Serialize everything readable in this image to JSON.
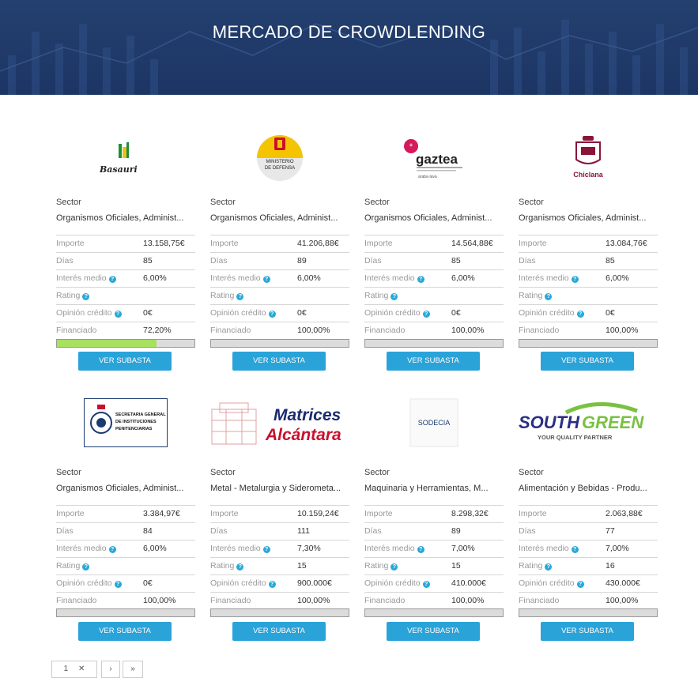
{
  "page": {
    "title": "MERCADO DE CROWDLENDING"
  },
  "logos": {
    "basauri": "Basauri",
    "defensa": "MINISTERIO DE DEFENSA",
    "gaztea_name": "gaztea",
    "gaztea_tag": "araba·lava",
    "chiclana": "Chiclana",
    "sgip": "SECRETARIA GENERAL DE INSTITUCIONES PENITENCIARIAS",
    "matrices_1": "Matrices",
    "matrices_2": "Alcántara",
    "sodecia": "SODECIA",
    "southgreen_1": "SOUTH",
    "southgreen_2": "GREEN",
    "southgreen_tag": "YOUR QUALITY PARTNER"
  },
  "labels": {
    "sector": "Sector",
    "importe": "Importe",
    "dias": "Días",
    "interes": "Interés medio",
    "rating": "Rating",
    "opinion": "Opinión crédito",
    "financiado": "Financiado",
    "button": "VER SUBASTA"
  },
  "cards": [
    {
      "sector": "Organismos Oficiales, Administ...",
      "importe": "13.158,75€",
      "dias": "85",
      "interes": "6,00%",
      "rating": "",
      "opinion": "0€",
      "financiado": "72,20%",
      "progress": 0.722
    },
    {
      "sector": "Organismos Oficiales, Administ...",
      "importe": "41.206,88€",
      "dias": "89",
      "interes": "6,00%",
      "rating": "",
      "opinion": "0€",
      "financiado": "100,00%",
      "progress": 1.0
    },
    {
      "sector": "Organismos Oficiales, Administ...",
      "importe": "14.564,88€",
      "dias": "85",
      "interes": "6,00%",
      "rating": "",
      "opinion": "0€",
      "financiado": "100,00%",
      "progress": 1.0
    },
    {
      "sector": "Organismos Oficiales, Administ...",
      "importe": "13.084,76€",
      "dias": "85",
      "interes": "6,00%",
      "rating": "",
      "opinion": "0€",
      "financiado": "100,00%",
      "progress": 1.0
    },
    {
      "sector": "Organismos Oficiales, Administ...",
      "importe": "3.384,97€",
      "dias": "84",
      "interes": "6,00%",
      "rating": "",
      "opinion": "0€",
      "financiado": "100,00%",
      "progress": 1.0
    },
    {
      "sector": "Metal - Metalurgia y Siderometa...",
      "importe": "10.159,24€",
      "dias": "111",
      "interes": "7,30%",
      "rating": "15",
      "opinion": "900.000€",
      "financiado": "100,00%",
      "progress": 1.0
    },
    {
      "sector": "Maquinaria y Herramientas, M...",
      "importe": "8.298,32€",
      "dias": "89",
      "interes": "7,00%",
      "rating": "15",
      "opinion": "410.000€",
      "financiado": "100,00%",
      "progress": 1.0
    },
    {
      "sector": "Alimentación y Bebidas - Produ...",
      "importe": "2.063,88€",
      "dias": "77",
      "interes": "7,00%",
      "rating": "16",
      "opinion": "430.000€",
      "financiado": "100,00%",
      "progress": 1.0
    }
  ],
  "pagination": {
    "page": "1",
    "next": "›",
    "last": "»"
  },
  "colors": {
    "hero": "#1c3564",
    "button": "#2aa3d9",
    "progress_fill": "#a8e060",
    "info_icon": "#29a8d8"
  }
}
